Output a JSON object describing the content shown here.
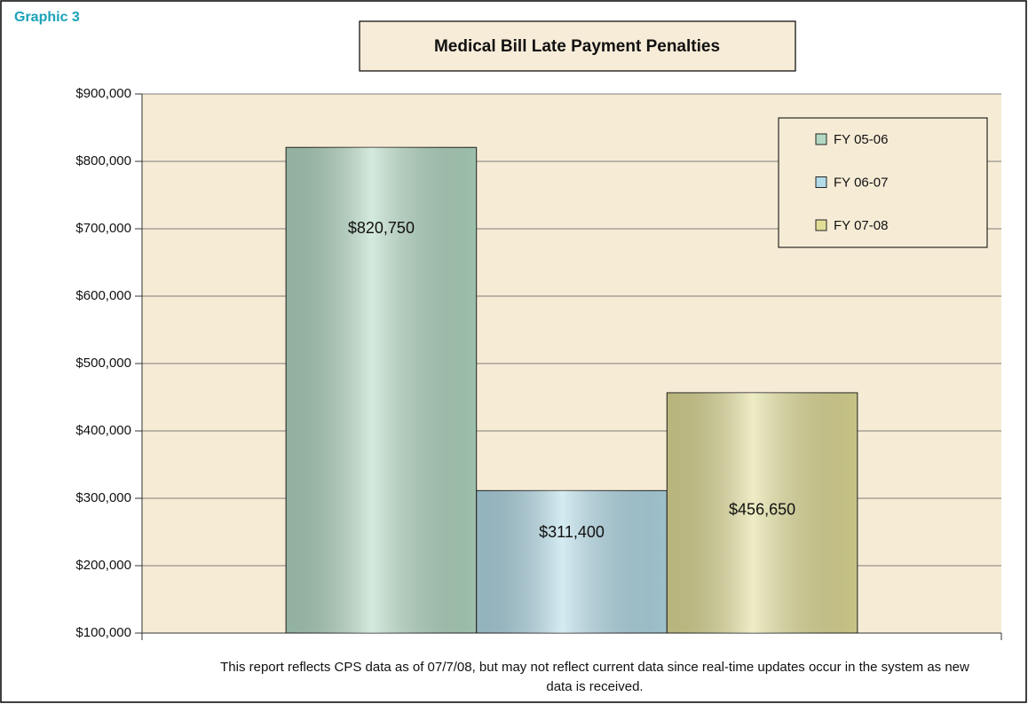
{
  "chart_data": {
    "type": "bar",
    "figure_label": "Graphic 3",
    "title": "Medical Bill Late Payment Penalties",
    "categories": [
      null
    ],
    "series": [
      {
        "name": "FY 05-06",
        "color": "#b3d9c3",
        "values": [
          820750
        ],
        "value_labels": [
          "$820,750"
        ]
      },
      {
        "name": "FY 06-07",
        "color": "#b3dbe8",
        "values": [
          311400
        ],
        "value_labels": [
          "$311,400"
        ]
      },
      {
        "name": "FY 07-08",
        "color": "#e2de98",
        "values": [
          456650
        ],
        "value_labels": [
          "$456,650"
        ]
      }
    ],
    "ylim": [
      100000,
      900000
    ],
    "yticks": [
      {
        "value": 100000,
        "label": "$100,000"
      },
      {
        "value": 200000,
        "label": "$200,000"
      },
      {
        "value": 300000,
        "label": "$300,000"
      },
      {
        "value": 400000,
        "label": "$400,000"
      },
      {
        "value": 500000,
        "label": "$500,000"
      },
      {
        "value": 600000,
        "label": "$600,000"
      },
      {
        "value": 700000,
        "label": "$700,000"
      },
      {
        "value": 800000,
        "label": "$800,000"
      },
      {
        "value": 900000,
        "label": "$900,000"
      }
    ],
    "grid": true,
    "legend": "top-right",
    "note": "This report reflects CPS data as of 07/7/08, but may not reflect current data since real-time updates occur in the system as new data is received."
  }
}
